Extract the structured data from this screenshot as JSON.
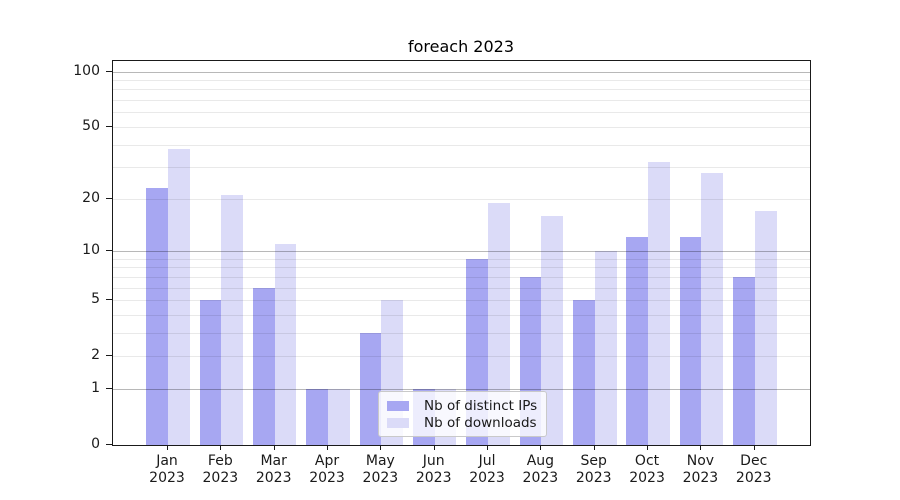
{
  "chart_data": {
    "type": "bar",
    "title": "foreach 2023",
    "categories": [
      "Jan 2023",
      "Feb 2023",
      "Mar 2023",
      "Apr 2023",
      "May 2023",
      "Jun 2023",
      "Jul 2023",
      "Aug 2023",
      "Sep 2023",
      "Oct 2023",
      "Nov 2023",
      "Dec 2023"
    ],
    "x_tick_months": [
      "Jan",
      "Feb",
      "Mar",
      "Apr",
      "May",
      "Jun",
      "Jul",
      "Aug",
      "Sep",
      "Oct",
      "Nov",
      "Dec"
    ],
    "x_tick_year": "2023",
    "series": [
      {
        "name": "Nb of distinct IPs",
        "color": "#a7a7f2",
        "values": [
          23,
          5,
          6,
          1,
          3,
          1,
          9,
          7,
          5,
          12,
          12,
          7
        ]
      },
      {
        "name": "Nb of downloads",
        "color": "#dbdbf8",
        "values": [
          38,
          21,
          11,
          1,
          5,
          1,
          19,
          16,
          10,
          32,
          28,
          17
        ]
      }
    ],
    "y_scale": "log10(1+value)",
    "ylim": [
      0,
      114
    ],
    "y_ticks": [
      0,
      1,
      2,
      5,
      10,
      20,
      50,
      100
    ],
    "grid_major_values": [
      1,
      10,
      100
    ],
    "grid_minor_values": [
      2,
      3,
      4,
      5,
      6,
      7,
      8,
      9,
      20,
      30,
      40,
      50,
      60,
      70,
      80,
      90
    ],
    "grid": true,
    "legend_position": "lower center"
  }
}
